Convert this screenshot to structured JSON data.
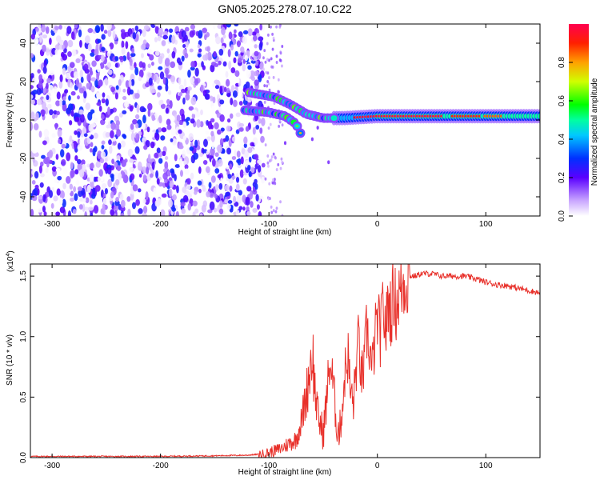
{
  "title": "GN05.2025.278.07.10.C22",
  "colorbar": {
    "label": "Normalized spectral amplitude",
    "ticks": [
      0.0,
      0.2,
      0.4,
      0.6,
      0.8
    ],
    "tick_labels": [
      "0.0",
      "0.2",
      "0.4",
      "0.6",
      "0.8"
    ],
    "range": [
      0,
      1
    ]
  },
  "chart_data": [
    {
      "type": "heatmap",
      "title": "GN05.2025.278.07.10.C22",
      "xlabel": "Height of straight line (km)",
      "ylabel": "Frequency (Hz)",
      "xlim": [
        -320,
        150
      ],
      "ylim": [
        -50,
        50
      ],
      "xticks": [
        -300,
        -200,
        -100,
        0,
        100
      ],
      "xtick_labels": [
        "-300",
        "-200",
        "-100",
        "0",
        "100"
      ],
      "yticks": [
        -40,
        -20,
        0,
        20,
        40
      ],
      "ytick_labels": [
        "-40",
        "-20",
        "0",
        "20",
        "40"
      ],
      "noise_region": {
        "x_from": -320,
        "x_to": -105,
        "amplitude_range": [
          0.0,
          0.3
        ]
      },
      "ridges": [
        {
          "name": "upper branch",
          "points": [
            [
              -115,
              14
            ],
            [
              -95,
              12
            ],
            [
              -80,
              8
            ],
            [
              -65,
              3
            ],
            [
              -50,
              1
            ],
            [
              -30,
              1
            ],
            [
              0,
              2
            ],
            [
              50,
              2
            ],
            [
              100,
              2
            ],
            [
              150,
              2
            ]
          ]
        },
        {
          "name": "lower branch",
          "points": [
            [
              -120,
              5
            ],
            [
              -100,
              4
            ],
            [
              -85,
              2
            ],
            [
              -75,
              -2
            ],
            [
              -70,
              -8
            ]
          ]
        }
      ],
      "peak_regions": [
        {
          "x_from": -20,
          "x_to": 60,
          "freq": 2,
          "amplitude": 0.95
        },
        {
          "x_from": 70,
          "x_to": 95,
          "freq": 3,
          "amplitude": 0.9
        },
        {
          "x_from": 100,
          "x_to": 115,
          "freq": 1,
          "amplitude": 0.85
        }
      ]
    },
    {
      "type": "line",
      "xlabel": "Height of straight line (km)",
      "ylabel": "SNR (10 * v/v)",
      "y_scale_label": "(x10",
      "y_scale_exponent": "4",
      "xlim": [
        -320,
        150
      ],
      "ylim": [
        0,
        1.6
      ],
      "xticks": [
        -300,
        -200,
        -100,
        0,
        100
      ],
      "xtick_labels": [
        "-300",
        "-200",
        "-100",
        "0",
        "100"
      ],
      "yticks": [
        0.0,
        0.5,
        1.0,
        1.5
      ],
      "ytick_labels": [
        "0.0",
        "0.5",
        "1.0",
        "1.5"
      ],
      "series": [
        {
          "name": "SNR",
          "color": "#e8302a",
          "x": [
            -320,
            -250,
            -200,
            -150,
            -120,
            -105,
            -90,
            -75,
            -70,
            -65,
            -60,
            -58,
            -55,
            -50,
            -47,
            -44,
            -40,
            -38,
            -35,
            -32,
            -30,
            -27,
            -25,
            -22,
            -20,
            -17,
            -15,
            -12,
            -10,
            -7,
            -5,
            -2,
            0,
            3,
            5,
            8,
            10,
            13,
            15,
            17,
            20,
            25,
            30,
            35,
            40,
            50,
            60,
            70,
            80,
            90,
            100,
            110,
            120,
            130,
            140,
            150
          ],
          "y": [
            0.01,
            0.01,
            0.01,
            0.015,
            0.02,
            0.03,
            0.07,
            0.15,
            0.3,
            0.55,
            0.9,
            0.6,
            0.35,
            0.2,
            0.45,
            0.8,
            0.55,
            0.3,
            0.2,
            0.45,
            0.7,
            0.85,
            0.55,
            0.45,
            0.7,
            1.0,
            0.65,
            0.75,
            1.05,
            0.9,
            0.7,
            1.0,
            1.15,
            1.0,
            1.25,
            1.05,
            1.3,
            1.2,
            1.38,
            1.25,
            1.35,
            1.45,
            1.5,
            1.5,
            1.52,
            1.52,
            1.5,
            1.5,
            1.5,
            1.48,
            1.45,
            1.43,
            1.42,
            1.4,
            1.38,
            1.36
          ]
        }
      ]
    }
  ]
}
